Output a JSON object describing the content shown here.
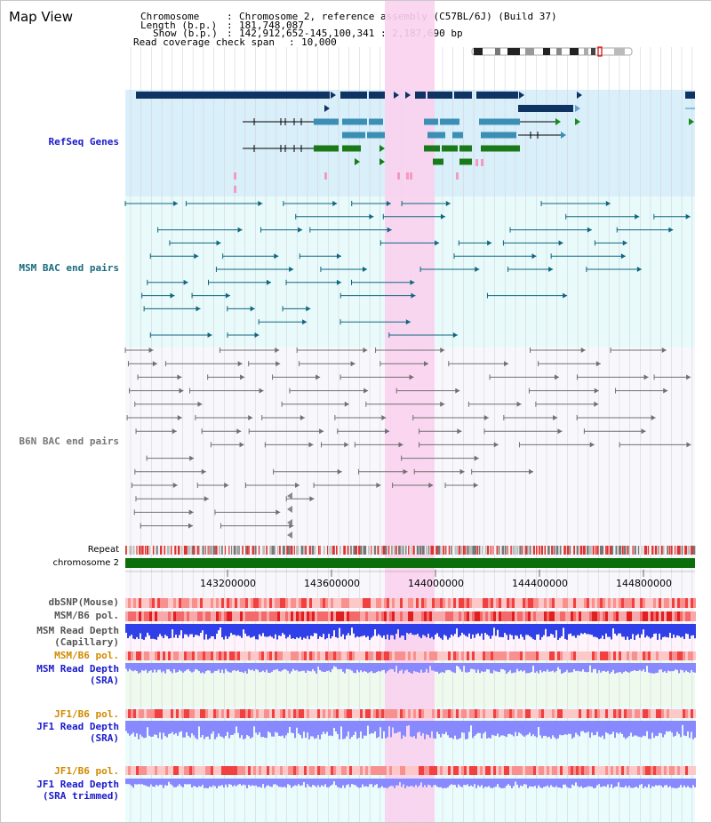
{
  "title": "Map View",
  "info": {
    "chromosome_key": "Chromosome",
    "chromosome_val": "Chromosome 2, reference assembly (C57BL/6J) (Build 37)",
    "length_key": "Length (b.p.)",
    "length_val": "181,748,087",
    "show_key": "Show (b.p.)",
    "show_val": "142,912,652-145,100,341 : 2,187,690 bp",
    "coverage_key": "Read coverage check span",
    "coverage_val": "10,000"
  },
  "tracks": {
    "refseq": "RefSeq Genes",
    "msm_bac": "MSM BAC end pairs",
    "b6n_bac": "B6N BAC end pairs",
    "repeat": "Repeat",
    "chromosome": "chromosome 2",
    "dbsnp": "dbSNP(Mouse)",
    "msm_b6_pol": "MSM/B6 pol.",
    "msm_depth_cap_1": "MSM Read Depth",
    "msm_depth_cap_2": "(Capillary)",
    "msm_b6_pol_2": "MSM/B6 pol.",
    "msm_depth_sra_1": "MSM Read Depth",
    "msm_depth_sra_2": "(SRA)",
    "jf1_b6_pol": "JF1/B6 pol.",
    "jf1_depth_sra_1": "JF1 Read Depth",
    "jf1_depth_sra_2": "(SRA)",
    "jf1_b6_pol_2": "JF1/B6 pol.",
    "jf1_depth_trim_1": "JF1 Read Depth",
    "jf1_depth_trim_2": "(SRA trimmed)"
  },
  "axis_ticks": [
    "143200000",
    "143600000",
    "144000000",
    "144400000",
    "144800000"
  ],
  "colors": {
    "refseq_dark": "#0f3363",
    "refseq_mid": "#3b8fb5",
    "refseq_green": "#1a7a1a",
    "msm_pair": "#0f6680",
    "b6n_pair": "#707070",
    "highlight": "#f9d2ee",
    "chromosome": "#0a6e0a",
    "label_blue": "#1a1acc",
    "label_teal": "#1a6a80",
    "label_orange": "#d08a00",
    "depth_blue": "#3040e8",
    "depth_light": "#8888ff"
  }
}
